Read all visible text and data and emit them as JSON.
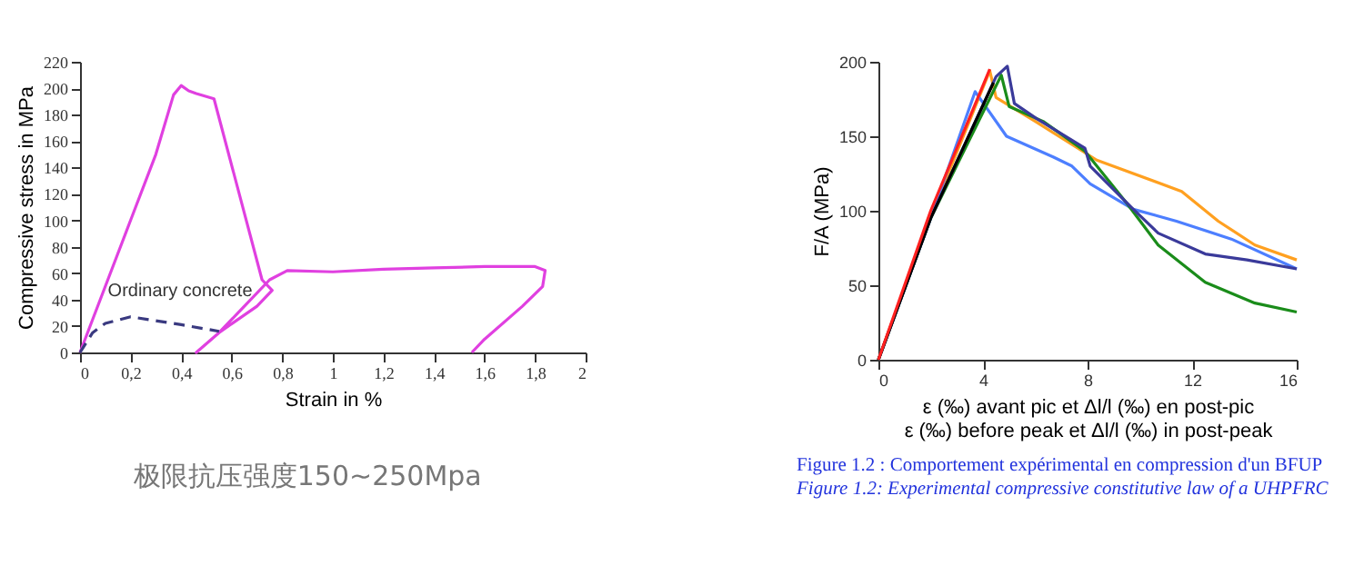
{
  "chart_data": [
    {
      "type": "line",
      "xlabel": "Strain in  %",
      "ylabel": "Compressive stress in MPa",
      "xlim": [
        0,
        2
      ],
      "ylim": [
        0,
        220
      ],
      "xticks": [
        0,
        {
          "value": 0.2,
          "label": "0,2"
        },
        {
          "value": 0.4,
          "label": "0,4"
        },
        {
          "value": 0.6,
          "label": "0,6"
        },
        {
          "value": 0.8,
          "label": "0,8"
        },
        1,
        {
          "value": 1.2,
          "label": "1,2"
        },
        {
          "value": 1.4,
          "label": "1,4"
        },
        {
          "value": 1.6,
          "label": "1,6"
        },
        {
          "value": 1.8,
          "label": "1,8"
        },
        2
      ],
      "yticks": [
        0,
        20,
        40,
        60,
        80,
        100,
        120,
        140,
        160,
        180,
        200,
        220
      ],
      "series": [
        {
          "color": "#e040e0",
          "line_style": "solid",
          "x": [
            0,
            0.1,
            0.2,
            0.3,
            0.37,
            0.4,
            0.43,
            0.46,
            0.53,
            0.72,
            0.76,
            0.7,
            0.55,
            0.46,
            0.55,
            0.65,
            0.75,
            0.82,
            1.0,
            1.2,
            1.4,
            1.6,
            1.8,
            1.84,
            1.83,
            1.75,
            1.6,
            1.55
          ],
          "values": [
            0,
            50,
            100,
            150,
            195,
            202,
            198,
            196,
            192,
            55,
            47,
            35,
            15,
            0,
            15,
            35,
            55,
            62,
            61,
            63,
            64,
            65,
            65,
            62,
            50,
            35,
            10,
            0
          ]
        },
        {
          "color": "#3a3a80",
          "line_style": "dashed",
          "x": [
            0,
            0.05,
            0.1,
            0.2,
            0.3,
            0.4,
            0.55
          ],
          "values": [
            0,
            15,
            22,
            27,
            24,
            21,
            16
          ]
        }
      ],
      "annotations": [
        "Ordinary concrete",
        "极限抗压强度150~250Mpa"
      ]
    },
    {
      "type": "line",
      "xlabel": "ε (‰) avant pic et Δl/l (‰) en post-pic\nε (‰) before peak et Δl/l (‰) in post-peak",
      "ylabel": "F/A (MPa)",
      "xlim": [
        0,
        16
      ],
      "ylim": [
        0,
        200
      ],
      "xticks": [
        0,
        4,
        8,
        12,
        16
      ],
      "yticks": [
        0,
        50,
        100,
        150,
        200
      ],
      "series": [
        {
          "color": "#ffa020",
          "line_style": "solid",
          "x": [
            0,
            2,
            4.26,
            4.5,
            6.0,
            8.35,
            11.6,
            13.0,
            14.4,
            16
          ],
          "values": [
            0,
            96,
            194,
            176,
            160,
            134,
            113,
            93,
            77,
            67
          ]
        },
        {
          "color": "#4d7fff",
          "line_style": "solid",
          "x": [
            0,
            2,
            3.7,
            4.9,
            6.7,
            7.4,
            8.1,
            9.75,
            11.4,
            13.5,
            16
          ],
          "values": [
            0,
            95,
            180,
            150,
            136,
            130,
            118,
            101,
            93,
            81,
            61
          ]
        },
        {
          "color": "#1a8c1a",
          "line_style": "solid",
          "x": [
            0,
            2,
            4.7,
            5.0,
            6.3,
            7.9,
            9.5,
            10.7,
            12.5,
            14.4,
            16
          ],
          "values": [
            0,
            95,
            191,
            170,
            160,
            140,
            105,
            77,
            52,
            38,
            32
          ]
        },
        {
          "color": "#3a3a9a",
          "line_style": "solid",
          "x": [
            0,
            2,
            4.5,
            4.93,
            5.2,
            6.04,
            7.9,
            8.1,
            9.75,
            10.7,
            12.5,
            14.1,
            16
          ],
          "values": [
            0,
            95,
            190,
            197,
            172,
            162,
            142,
            130,
            101,
            85,
            71,
            67,
            61
          ]
        },
        {
          "color": "#000000",
          "line_style": "solid",
          "x": [
            0,
            2,
            4.4
          ],
          "values": [
            0,
            95,
            186
          ]
        },
        {
          "color": "#ff2020",
          "line_style": "solid",
          "x": [
            0,
            2,
            4.26
          ],
          "values": [
            0,
            100,
            195
          ]
        }
      ],
      "annotations": [
        "Figure 1.2 : Comportement expérimental en compression d'un BFUP",
        "Figure 1.2: Experimental compressive constitutive law of a UHPFRC"
      ]
    }
  ]
}
